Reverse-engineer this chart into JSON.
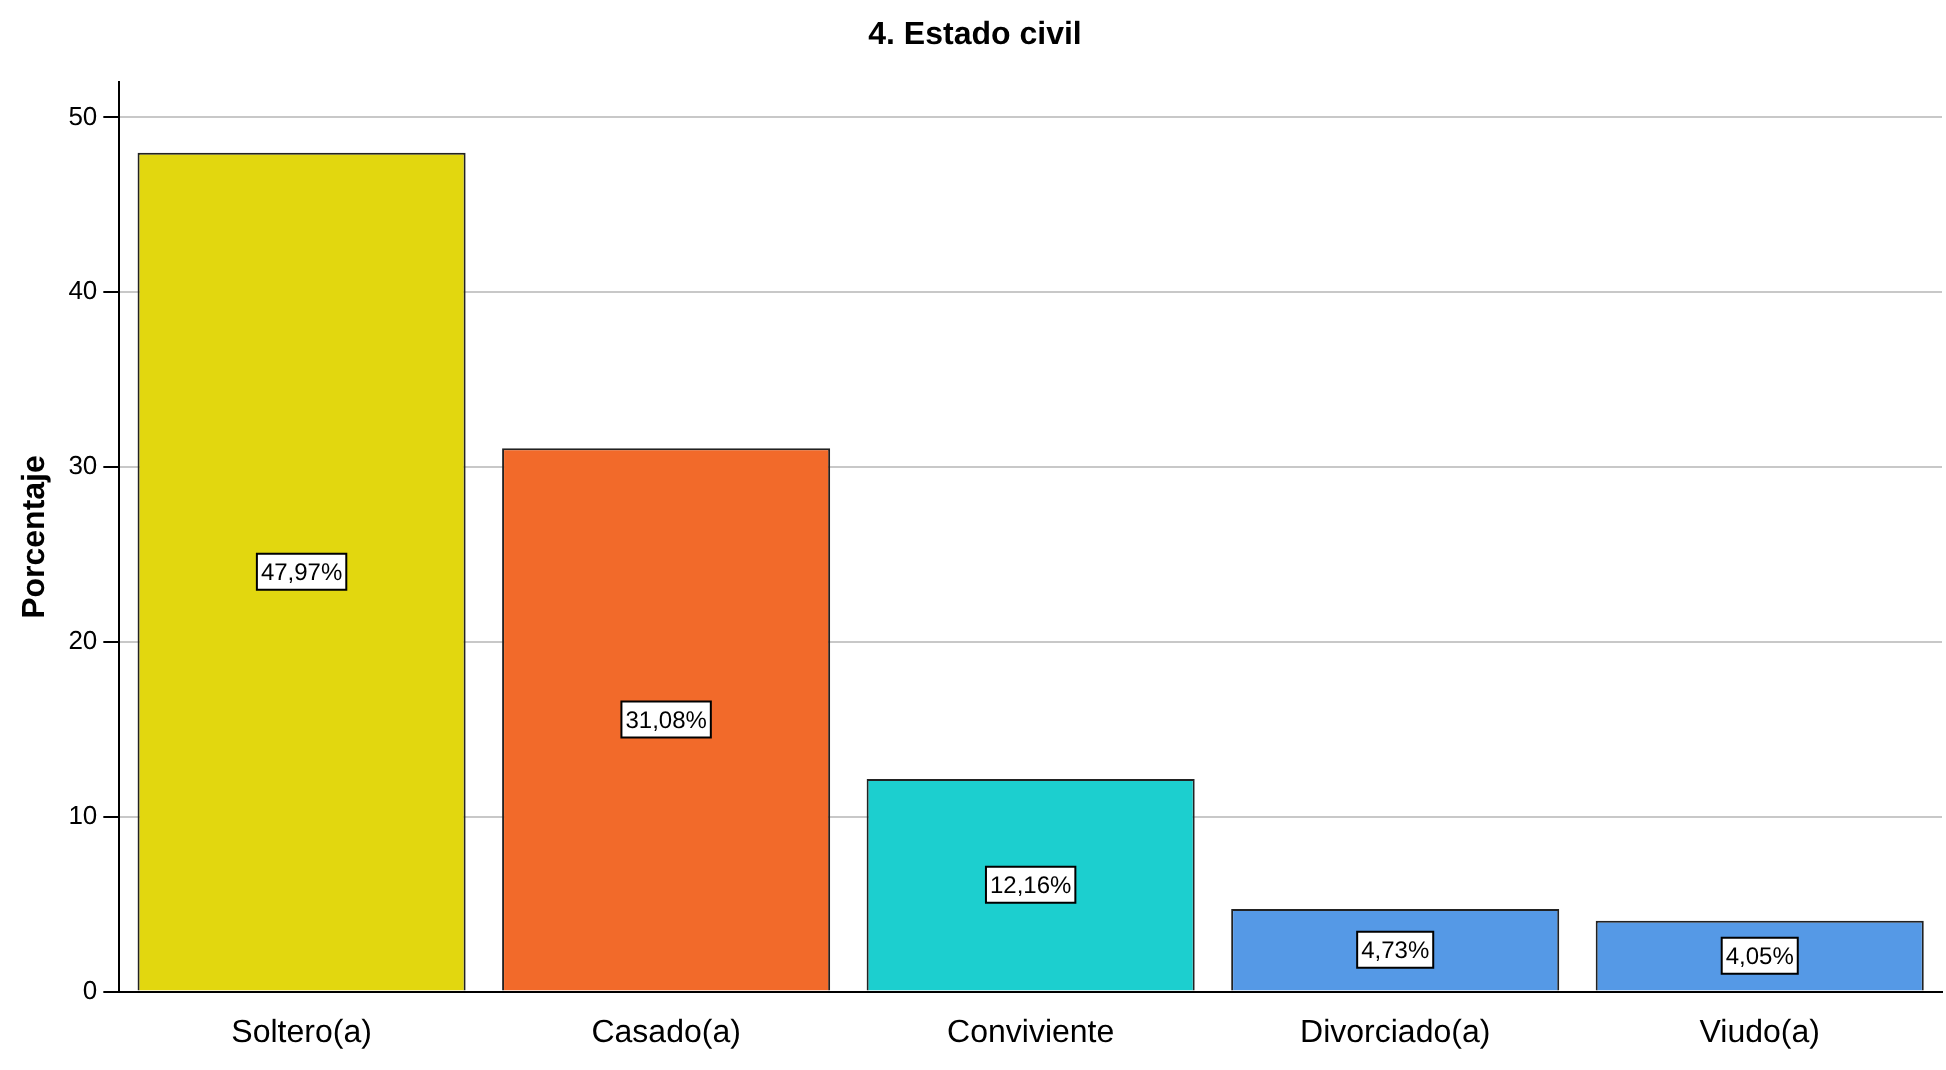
{
  "chart_data": {
    "type": "bar",
    "title": "4. Estado civil",
    "ylabel": "Porcentaje",
    "categories": [
      "Soltero(a)",
      "Casado(a)",
      "Conviviente",
      "Divorciado(a)",
      "Viudo(a)"
    ],
    "values": [
      47.97,
      31.08,
      12.16,
      4.73,
      4.05
    ],
    "colors": [
      "#e2d70f",
      "#f26a2a",
      "#1ccfcf",
      "#5599e6",
      "#5599e6"
    ],
    "value_labels": [
      "47,97%",
      "31,08%",
      "12,16%",
      "4,73%",
      "4,05%"
    ],
    "ylim": [
      0,
      52
    ],
    "yticks": [
      0,
      10,
      20,
      30,
      40,
      50
    ],
    "grid": "y",
    "legend": false
  }
}
